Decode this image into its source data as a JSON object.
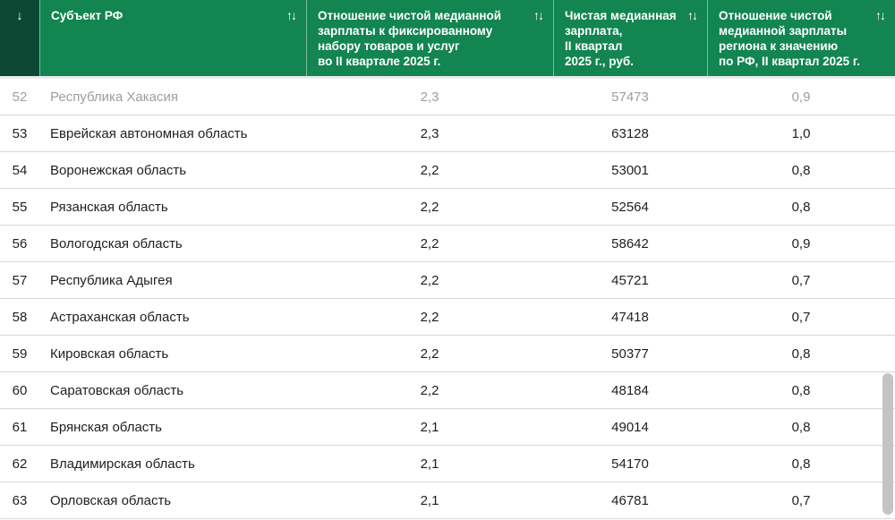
{
  "colors": {
    "header_green": "#128551",
    "header_dark_green": "#0c4734",
    "row_divider": "#d9d9d9",
    "muted_row_text": "#9e9e9e",
    "scrollbar_thumb": "#c4c4c4"
  },
  "table": {
    "rank_sort_icon": "↓",
    "sort_icon": "↑↓",
    "columns": {
      "region": "Субъект РФ",
      "ratio_basket": "Отношение чистой медианной\nзарплаты к фиксированному\nнабору товаров и услуг\nво II квартале 2025 г.",
      "salary": "Чистая медианная\nзарплата,\nII квартал\n2025 г., руб.",
      "ratio_rf": "Отношение чистой\nмедианной зарплаты\nрегиона к значению\nпо РФ, II квартал 2025 г."
    },
    "rows": [
      {
        "rank": "52",
        "region": "Республика Хакасия",
        "ratio_basket": "2,3",
        "salary": "57473",
        "ratio_rf": "0,9",
        "muted": true
      },
      {
        "rank": "53",
        "region": "Еврейская автономная область",
        "ratio_basket": "2,3",
        "salary": "63128",
        "ratio_rf": "1,0",
        "muted": false
      },
      {
        "rank": "54",
        "region": "Воронежская область",
        "ratio_basket": "2,2",
        "salary": "53001",
        "ratio_rf": "0,8",
        "muted": false
      },
      {
        "rank": "55",
        "region": "Рязанская область",
        "ratio_basket": "2,2",
        "salary": "52564",
        "ratio_rf": "0,8",
        "muted": false
      },
      {
        "rank": "56",
        "region": "Вологодская область",
        "ratio_basket": "2,2",
        "salary": "58642",
        "ratio_rf": "0,9",
        "muted": false
      },
      {
        "rank": "57",
        "region": "Республика Адыгея",
        "ratio_basket": "2,2",
        "salary": "45721",
        "ratio_rf": "0,7",
        "muted": false
      },
      {
        "rank": "58",
        "region": "Астраханская область",
        "ratio_basket": "2,2",
        "salary": "47418",
        "ratio_rf": "0,7",
        "muted": false
      },
      {
        "rank": "59",
        "region": "Кировская область",
        "ratio_basket": "2,2",
        "salary": "50377",
        "ratio_rf": "0,8",
        "muted": false
      },
      {
        "rank": "60",
        "region": "Саратовская область",
        "ratio_basket": "2,2",
        "salary": "48184",
        "ratio_rf": "0,8",
        "muted": false
      },
      {
        "rank": "61",
        "region": "Брянская область",
        "ratio_basket": "2,1",
        "salary": "49014",
        "ratio_rf": "0,8",
        "muted": false
      },
      {
        "rank": "62",
        "region": "Владимирская область",
        "ratio_basket": "2,1",
        "salary": "54170",
        "ratio_rf": "0,8",
        "muted": false
      },
      {
        "rank": "63",
        "region": "Орловская область",
        "ratio_basket": "2,1",
        "salary": "46781",
        "ratio_rf": "0,7",
        "muted": false
      }
    ]
  }
}
